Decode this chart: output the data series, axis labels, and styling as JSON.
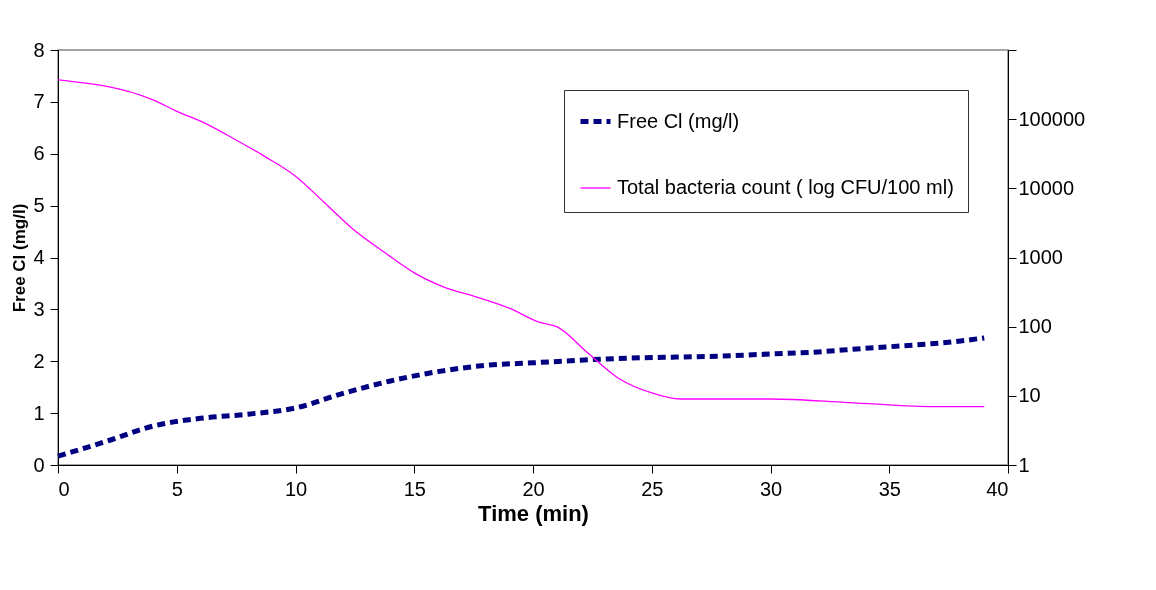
{
  "chart_data": {
    "type": "line",
    "xlabel": "Time (min)",
    "ylabel": "Free Cl (mg/l)",
    "xlim": [
      0,
      40
    ],
    "xticks": [
      0,
      5,
      10,
      15,
      20,
      25,
      30,
      35,
      40
    ],
    "ylim": [
      0,
      8
    ],
    "yticks": [
      0,
      1,
      2,
      3,
      4,
      5,
      6,
      7,
      8
    ],
    "y2lim": [
      1,
      1000000
    ],
    "y2ticks": [
      1,
      10,
      100,
      1000,
      10000,
      100000,
      {
        "value": 1000000,
        "label": null
      }
    ],
    "log": "y2",
    "grid": false,
    "legend": "top right",
    "series": [
      {
        "name": "Free Cl (mg/l)",
        "color": "#000080",
        "line_style": "dashed",
        "x": [
          0,
          2,
          4,
          6,
          8,
          10,
          12,
          14,
          16,
          18,
          20,
          22,
          24,
          26,
          28,
          30,
          32,
          34,
          36,
          38,
          39
        ],
        "values": [
          0.17,
          0.45,
          0.75,
          0.9,
          0.98,
          1.1,
          1.38,
          1.62,
          1.8,
          1.92,
          1.97,
          2.02,
          2.06,
          2.08,
          2.1,
          2.14,
          2.18,
          2.25,
          2.31,
          2.39,
          2.45
        ]
      },
      {
        "name": "Total bacteria count ( log CFU/100 ml)",
        "color": "#ff00ff",
        "line_style": "solid",
        "axis": "y2",
        "x": [
          0,
          4,
          5,
          6.2,
          7.5,
          8.7,
          10,
          11.2,
          12.4,
          13.8,
          15,
          16.2,
          17.6,
          19,
          20.3,
          21,
          22.3,
          23.6,
          25,
          26.2,
          30,
          33.3,
          36.7,
          39
        ],
        "values": [
          370000,
          190000,
          130000,
          87000,
          50000,
          29000,
          15000,
          6300,
          2600,
          1150,
          600,
          380,
          270,
          185,
          115,
          100,
          42,
          18,
          11,
          9,
          9,
          8,
          7,
          7
        ]
      }
    ]
  }
}
